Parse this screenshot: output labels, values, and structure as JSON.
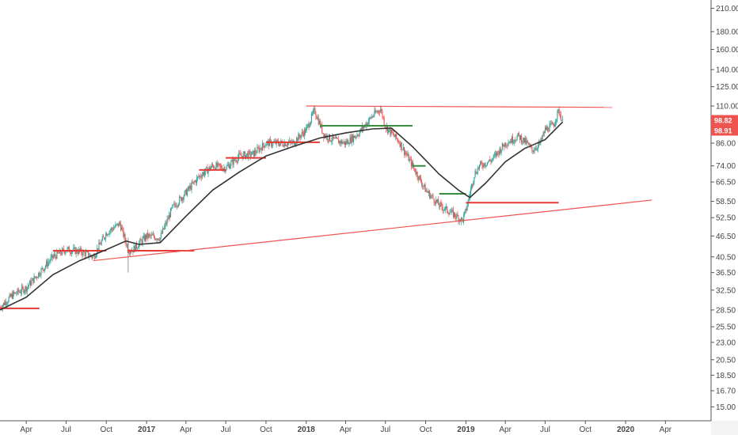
{
  "colors": {
    "background": "#ffffff",
    "up": "#26a69a",
    "down": "#ef5350",
    "ma": "#333333",
    "trendline": "#ef5350",
    "support": "#388e3c",
    "resistance": "#e53935",
    "axis": "#555555"
  },
  "price_labels": [
    {
      "name": "last-price-label",
      "value": "98.82",
      "color": "#ef5350"
    },
    {
      "name": "ma-value-label",
      "value": "98.91",
      "color": "#ef5350"
    }
  ],
  "chart_data": {
    "type": "candlestick",
    "title": "",
    "ylabel": "",
    "y_scale": "log",
    "ylim": [
      15,
      210
    ],
    "xlim": [
      "2016-02-01",
      "2020-06-01"
    ],
    "y_ticks": [
      {
        "v": 210,
        "label": "210.00"
      },
      {
        "v": 180,
        "label": "180.00"
      },
      {
        "v": 160,
        "label": "160.00"
      },
      {
        "v": 140,
        "label": "140.00"
      },
      {
        "v": 125,
        "label": "125.00"
      },
      {
        "v": 110,
        "label": "110.00"
      },
      {
        "v": 86,
        "label": "86.00"
      },
      {
        "v": 74,
        "label": "74.00"
      },
      {
        "v": 66.5,
        "label": "66.50"
      },
      {
        "v": 58.5,
        "label": "58.50"
      },
      {
        "v": 52.5,
        "label": "52.50"
      },
      {
        "v": 46.5,
        "label": "46.50"
      },
      {
        "v": 40.5,
        "label": "40.50"
      },
      {
        "v": 36.5,
        "label": "36.50"
      },
      {
        "v": 32.5,
        "label": "32.50"
      },
      {
        "v": 28.5,
        "label": "28.50"
      },
      {
        "v": 25.5,
        "label": "25.50"
      },
      {
        "v": 23,
        "label": "23.00"
      },
      {
        "v": 20.5,
        "label": "20.50"
      },
      {
        "v": 18.5,
        "label": "18.50"
      },
      {
        "v": 16.7,
        "label": "16.70"
      },
      {
        "v": 15,
        "label": "15.00"
      }
    ],
    "x_ticks": [
      {
        "date": "2016-04-01",
        "label": "Apr",
        "bold": false
      },
      {
        "date": "2016-07-01",
        "label": "Jul",
        "bold": false
      },
      {
        "date": "2016-10-01",
        "label": "Oct",
        "bold": false
      },
      {
        "date": "2017-01-01",
        "label": "2017",
        "bold": true
      },
      {
        "date": "2017-04-01",
        "label": "Apr",
        "bold": false
      },
      {
        "date": "2017-07-01",
        "label": "Jul",
        "bold": false
      },
      {
        "date": "2017-10-01",
        "label": "Oct",
        "bold": false
      },
      {
        "date": "2018-01-01",
        "label": "2018",
        "bold": true
      },
      {
        "date": "2018-04-01",
        "label": "Apr",
        "bold": false
      },
      {
        "date": "2018-07-01",
        "label": "Jul",
        "bold": false
      },
      {
        "date": "2018-10-01",
        "label": "Oct",
        "bold": false
      },
      {
        "date": "2019-01-01",
        "label": "2019",
        "bold": true
      },
      {
        "date": "2019-04-01",
        "label": "Apr",
        "bold": false
      },
      {
        "date": "2019-07-01",
        "label": "Jul",
        "bold": false
      },
      {
        "date": "2019-10-01",
        "label": "Oct",
        "bold": false
      },
      {
        "date": "2020-01-01",
        "label": "2020",
        "bold": true
      },
      {
        "date": "2020-04-01",
        "label": "Apr",
        "bold": false
      }
    ],
    "price_path": [
      {
        "date": "2016-02-01",
        "close": 29.0
      },
      {
        "date": "2016-03-01",
        "close": 31.5
      },
      {
        "date": "2016-04-01",
        "close": 33.0
      },
      {
        "date": "2016-05-01",
        "close": 36.5
      },
      {
        "date": "2016-06-01",
        "close": 40.5
      },
      {
        "date": "2016-07-01",
        "close": 42.5
      },
      {
        "date": "2016-08-01",
        "close": 42.0
      },
      {
        "date": "2016-09-01",
        "close": 40.5
      },
      {
        "date": "2016-10-01",
        "close": 47.5
      },
      {
        "date": "2016-11-01",
        "close": 50.5
      },
      {
        "date": "2016-11-20",
        "close": 42.5
      },
      {
        "date": "2016-12-01",
        "close": 42.5
      },
      {
        "date": "2017-01-01",
        "close": 46.5
      },
      {
        "date": "2017-02-01",
        "close": 46.0
      },
      {
        "date": "2017-03-01",
        "close": 56.0
      },
      {
        "date": "2017-04-01",
        "close": 62.0
      },
      {
        "date": "2017-05-01",
        "close": 69.0
      },
      {
        "date": "2017-06-01",
        "close": 74.0
      },
      {
        "date": "2017-07-01",
        "close": 73.0
      },
      {
        "date": "2017-08-01",
        "close": 79.0
      },
      {
        "date": "2017-09-01",
        "close": 80.0
      },
      {
        "date": "2017-10-01",
        "close": 86.0
      },
      {
        "date": "2017-11-01",
        "close": 86.0
      },
      {
        "date": "2017-12-01",
        "close": 86.0
      },
      {
        "date": "2018-01-01",
        "close": 94.0
      },
      {
        "date": "2018-01-20",
        "close": 107.0
      },
      {
        "date": "2018-02-10",
        "close": 91.0
      },
      {
        "date": "2018-03-01",
        "close": 88.0
      },
      {
        "date": "2018-04-01",
        "close": 86.0
      },
      {
        "date": "2018-05-01",
        "close": 92.0
      },
      {
        "date": "2018-06-01",
        "close": 103.0
      },
      {
        "date": "2018-06-20",
        "close": 108.0
      },
      {
        "date": "2018-07-01",
        "close": 96.0
      },
      {
        "date": "2018-08-01",
        "close": 87.0
      },
      {
        "date": "2018-09-01",
        "close": 74.0
      },
      {
        "date": "2018-10-01",
        "close": 63.0
      },
      {
        "date": "2018-11-01",
        "close": 57.0
      },
      {
        "date": "2018-12-01",
        "close": 54.0
      },
      {
        "date": "2018-12-24",
        "close": 51.5
      },
      {
        "date": "2019-01-01",
        "close": 55.0
      },
      {
        "date": "2019-01-20",
        "close": 70.0
      },
      {
        "date": "2019-02-01",
        "close": 74.0
      },
      {
        "date": "2019-03-01",
        "close": 77.0
      },
      {
        "date": "2019-04-01",
        "close": 86.0
      },
      {
        "date": "2019-05-01",
        "close": 90.0
      },
      {
        "date": "2019-05-20",
        "close": 86.0
      },
      {
        "date": "2019-06-01",
        "close": 82.0
      },
      {
        "date": "2019-06-20",
        "close": 86.0
      },
      {
        "date": "2019-07-01",
        "close": 94.0
      },
      {
        "date": "2019-07-20",
        "close": 97.0
      },
      {
        "date": "2019-08-01",
        "close": 107.0
      },
      {
        "date": "2019-08-10",
        "close": 98.82
      }
    ],
    "moving_average": [
      {
        "date": "2016-02-01",
        "value": 28.5
      },
      {
        "date": "2016-04-01",
        "value": 31.0
      },
      {
        "date": "2016-06-01",
        "value": 36.0
      },
      {
        "date": "2016-08-01",
        "value": 39.5
      },
      {
        "date": "2016-10-01",
        "value": 42.5
      },
      {
        "date": "2016-11-15",
        "value": 45.0
      },
      {
        "date": "2016-12-15",
        "value": 44.0
      },
      {
        "date": "2017-02-01",
        "value": 44.5
      },
      {
        "date": "2017-04-01",
        "value": 53.0
      },
      {
        "date": "2017-06-01",
        "value": 63.0
      },
      {
        "date": "2017-08-01",
        "value": 71.0
      },
      {
        "date": "2017-10-01",
        "value": 79.0
      },
      {
        "date": "2017-12-01",
        "value": 84.0
      },
      {
        "date": "2018-02-01",
        "value": 89.0
      },
      {
        "date": "2018-04-01",
        "value": 92.0
      },
      {
        "date": "2018-06-01",
        "value": 94.5
      },
      {
        "date": "2018-07-15",
        "value": 95.0
      },
      {
        "date": "2018-09-01",
        "value": 84.0
      },
      {
        "date": "2018-11-01",
        "value": 70.0
      },
      {
        "date": "2018-12-15",
        "value": 63.0
      },
      {
        "date": "2019-01-10",
        "value": 60.0
      },
      {
        "date": "2019-02-15",
        "value": 66.0
      },
      {
        "date": "2019-04-01",
        "value": 76.0
      },
      {
        "date": "2019-05-15",
        "value": 83.0
      },
      {
        "date": "2019-07-01",
        "value": 88.0
      },
      {
        "date": "2019-08-10",
        "value": 98.91
      }
    ],
    "trendlines": [
      {
        "name": "resistance-trendline",
        "from": {
          "date": "2018-01-01",
          "price": 110.0
        },
        "to": {
          "date": "2019-12-01",
          "price": 109.0
        },
        "color": "#ef5350"
      },
      {
        "name": "support-trendline",
        "from": {
          "date": "2016-09-01",
          "price": 39.5
        },
        "to": {
          "date": "2020-03-01",
          "price": 59.0
        },
        "color": "#ef5350"
      }
    ],
    "level_lines": [
      {
        "from": "2016-02-01",
        "to": "2016-05-01",
        "price": 28.8,
        "color": "#e53935"
      },
      {
        "from": "2016-06-01",
        "to": "2016-10-01",
        "price": 42.2,
        "color": "#e53935"
      },
      {
        "from": "2016-11-20",
        "to": "2017-04-20",
        "price": 42.2,
        "color": "#e53935"
      },
      {
        "from": "2017-05-01",
        "to": "2017-07-01",
        "price": 72.0,
        "color": "#e53935"
      },
      {
        "from": "2017-07-01",
        "to": "2017-10-01",
        "price": 78.0,
        "color": "#e53935"
      },
      {
        "from": "2017-10-01",
        "to": "2018-02-01",
        "price": 86.5,
        "color": "#e53935"
      },
      {
        "from": "2018-02-01",
        "to": "2018-09-01",
        "price": 96.5,
        "color": "#388e3c"
      },
      {
        "from": "2018-09-01",
        "to": "2018-10-01",
        "price": 74.0,
        "color": "#388e3c"
      },
      {
        "from": "2018-11-01",
        "to": "2019-01-01",
        "price": 61.5,
        "color": "#388e3c"
      },
      {
        "from": "2019-01-01",
        "to": "2019-08-01",
        "price": 58.0,
        "color": "#e53935"
      }
    ],
    "last_price": 98.82,
    "ma_value": 98.91,
    "grid": false,
    "legend": "none"
  }
}
